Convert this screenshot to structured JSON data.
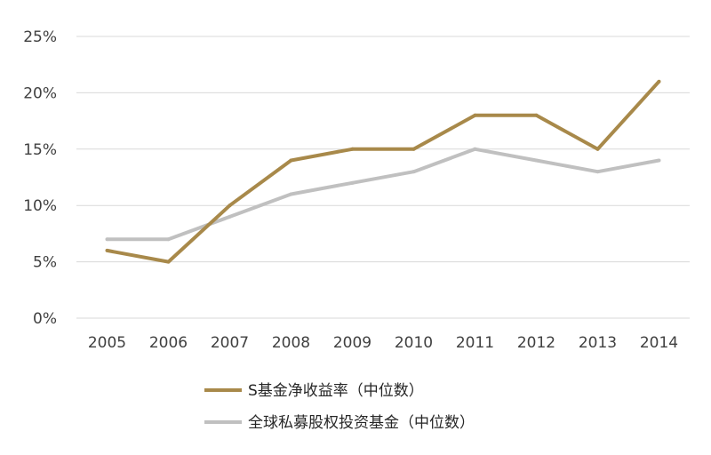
{
  "chart_data": {
    "type": "line",
    "x": [
      "2005",
      "2006",
      "2007",
      "2008",
      "2009",
      "2010",
      "2011",
      "2012",
      "2013",
      "2014"
    ],
    "y_ticks": [
      "0%",
      "5%",
      "10%",
      "15%",
      "20%",
      "25%"
    ],
    "ylim": [
      0,
      25
    ],
    "grid": true,
    "legend_placement": "bottom",
    "series": [
      {
        "name": "S基金净收益率（中位数）",
        "color": "#a8894a",
        "values": [
          6,
          5,
          10,
          14,
          15,
          15,
          18,
          18,
          15,
          21
        ]
      },
      {
        "name": "全球私募股权投资基金（中位数）",
        "color": "#c0c0c0",
        "values": [
          7,
          7,
          9,
          11,
          12,
          13,
          15,
          14,
          13,
          14
        ]
      }
    ]
  }
}
